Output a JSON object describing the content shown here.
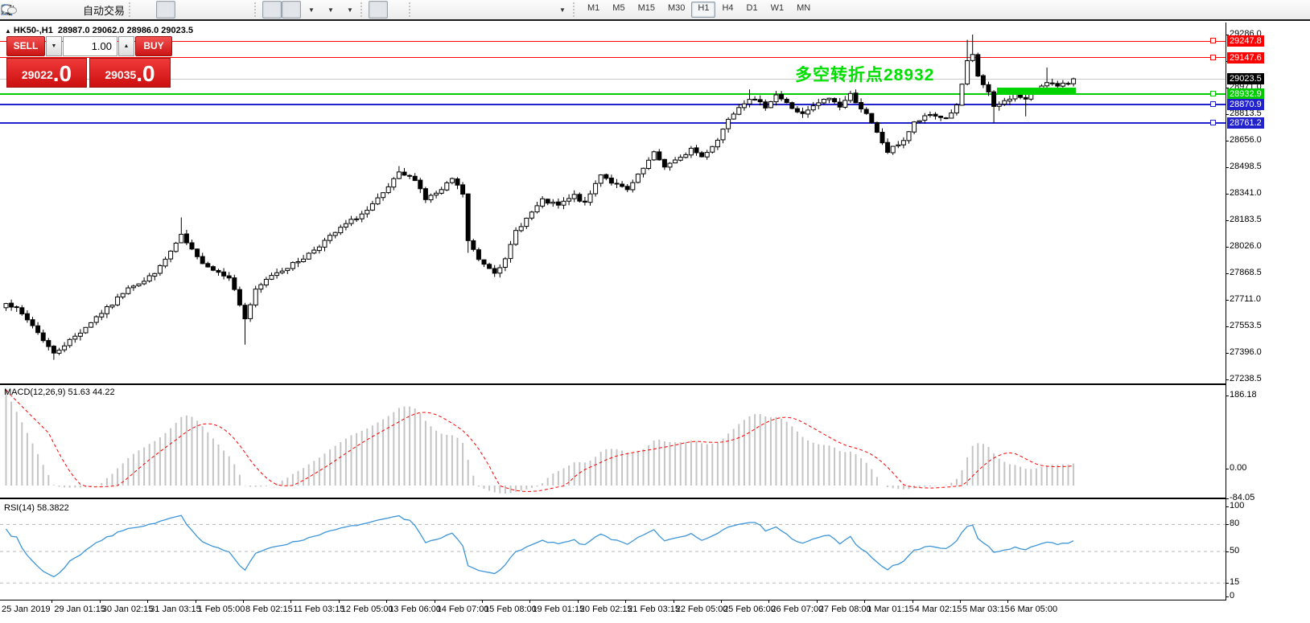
{
  "toolbar": {
    "new_order_label": "单",
    "autotrading_label": "自动交易",
    "timeframes": [
      "M1",
      "M5",
      "M15",
      "M30",
      "H1",
      "H4",
      "D1",
      "W1",
      "MN"
    ],
    "active_timeframe": "H1"
  },
  "chart": {
    "title": "HK50-,H1",
    "ohlc": "28987.0 29062.0 28986.0 29023.5"
  },
  "trade_panel": {
    "sell_label": "SELL",
    "buy_label": "BUY",
    "lot_value": "1.00",
    "sell_price": "29022",
    "sell_price_big": ".0",
    "buy_price": "29035",
    "buy_price_big": ".0"
  },
  "annotation": {
    "text": "多空转折点28932",
    "color": "#00E000"
  },
  "price_axis": {
    "ticks": [
      "29286.0",
      "29128.5",
      "28971.0",
      "28813.5",
      "28656.0",
      "28498.5",
      "28341.0",
      "28183.5",
      "28026.0",
      "27868.5",
      "27711.0",
      "27553.5",
      "27396.0",
      "27238.5"
    ],
    "badges": [
      {
        "text": "29247.8",
        "bg": "#FF0000"
      },
      {
        "text": "29147.6",
        "bg": "#FF0000"
      },
      {
        "text": "29023.5",
        "bg": "#000000"
      },
      {
        "text": "28932.9",
        "bg": "#00CC00"
      },
      {
        "text": "28870.9",
        "bg": "#2222CC"
      },
      {
        "text": "28761.2",
        "bg": "#2222CC"
      }
    ]
  },
  "levels": [
    {
      "price": 29247.8,
      "color": "#FF0000",
      "width": 1,
      "handle": true
    },
    {
      "price": 29147.6,
      "color": "#FF0000",
      "width": 1,
      "handle": true
    },
    {
      "price": 29023.5,
      "color": "#C8C8C8",
      "width": 1,
      "handle": false
    },
    {
      "price": 28932.9,
      "color": "#00CC00",
      "width": 2,
      "handle": true
    },
    {
      "price": 28870.9,
      "color": "#2222CC",
      "width": 2,
      "handle": true
    },
    {
      "price": 28761.2,
      "color": "#2222CC",
      "width": 2,
      "handle": true
    }
  ],
  "zone": {
    "price_top": 28971,
    "price_bottom": 28930,
    "bar_start": 187,
    "bar_end": 201.8,
    "color": "#00D400"
  },
  "macd": {
    "label": "MACD(12,26,9) 51.63 44.22",
    "axis_labels": [
      "186.18",
      "0.00",
      "-84.05"
    ]
  },
  "rsi": {
    "label": "RSI(14) 58.3822",
    "axis_labels": [
      "100",
      "80",
      "50",
      "15",
      "0"
    ],
    "dashed_levels": [
      80,
      50,
      15
    ]
  },
  "time_axis": {
    "bars_per_label": 9,
    "labels": [
      "25 Jan 2019",
      "29 Jan 01:15",
      "30 Jan 02:15",
      "31 Jan 03:15",
      "1 Feb 05:00",
      "8 Feb 02:15",
      "11 Feb 03:15",
      "12 Feb 05:00",
      "13 Feb 06:00",
      "14 Feb 07:00",
      "15 Feb 08:00",
      "19 Feb 01:15",
      "20 Feb 02:15",
      "21 Feb 03:15",
      "22 Feb 05:00",
      "25 Feb 06:00",
      "26 Feb 07:00",
      "27 Feb 08:00",
      "1 Mar 01:15",
      "4 Mar 02:15",
      "5 Mar 03:15",
      "6 Mar 05:00"
    ]
  },
  "chart_data": {
    "type": "candlestick",
    "symbol": "HK50-",
    "timeframe": "H1",
    "open": 28987.0,
    "high": 29062.0,
    "low": 28986.0,
    "close": 29023.5,
    "bars": 202,
    "ylim": [
      27238.5,
      29286.0
    ],
    "price_waypoints": [
      [
        0,
        27700
      ],
      [
        2,
        27655
      ],
      [
        5,
        27560
      ],
      [
        9,
        27390
      ],
      [
        11,
        27445
      ],
      [
        14,
        27520
      ],
      [
        17,
        27610
      ],
      [
        20,
        27685
      ],
      [
        23,
        27790
      ],
      [
        26,
        27820
      ],
      [
        29,
        27905
      ],
      [
        33,
        28090
      ],
      [
        36,
        27960
      ],
      [
        39,
        27890
      ],
      [
        42,
        27850
      ],
      [
        45,
        27600
      ],
      [
        47,
        27765
      ],
      [
        50,
        27860
      ],
      [
        53,
        27905
      ],
      [
        56,
        27960
      ],
      [
        60,
        28060
      ],
      [
        64,
        28160
      ],
      [
        68,
        28240
      ],
      [
        71,
        28340
      ],
      [
        74,
        28460
      ],
      [
        77,
        28430
      ],
      [
        79,
        28310
      ],
      [
        82,
        28360
      ],
      [
        84,
        28430
      ],
      [
        86,
        28340
      ],
      [
        87,
        28060
      ],
      [
        89,
        27950
      ],
      [
        92,
        27880
      ],
      [
        94,
        27945
      ],
      [
        96,
        28120
      ],
      [
        99,
        28230
      ],
      [
        101,
        28300
      ],
      [
        104,
        28270
      ],
      [
        107,
        28330
      ],
      [
        109,
        28280
      ],
      [
        112,
        28460
      ],
      [
        114,
        28410
      ],
      [
        117,
        28360
      ],
      [
        120,
        28490
      ],
      [
        122,
        28580
      ],
      [
        124,
        28505
      ],
      [
        127,
        28550
      ],
      [
        129,
        28610
      ],
      [
        131,
        28560
      ],
      [
        134,
        28660
      ],
      [
        136,
        28790
      ],
      [
        138,
        28860
      ],
      [
        140,
        28910
      ],
      [
        143,
        28860
      ],
      [
        145,
        28930
      ],
      [
        148,
        28850
      ],
      [
        150,
        28810
      ],
      [
        153,
        28880
      ],
      [
        155,
        28910
      ],
      [
        157,
        28860
      ],
      [
        159,
        28930
      ],
      [
        162,
        28810
      ],
      [
        164,
        28700
      ],
      [
        166,
        28590
      ],
      [
        169,
        28660
      ],
      [
        171,
        28760
      ],
      [
        174,
        28810
      ],
      [
        177,
        28790
      ],
      [
        179,
        28860
      ],
      [
        181,
        29120
      ],
      [
        182,
        29160
      ],
      [
        183,
        29040
      ],
      [
        185,
        28940
      ],
      [
        186,
        28850
      ],
      [
        188,
        28890
      ],
      [
        190,
        28930
      ],
      [
        192,
        28900
      ],
      [
        194,
        28960
      ],
      [
        196,
        29010
      ],
      [
        198,
        28975
      ],
      [
        200,
        29000
      ],
      [
        201,
        29023.5
      ]
    ],
    "wick_overrides": [
      [
        9,
        "l",
        27355
      ],
      [
        33,
        "h",
        28200
      ],
      [
        45,
        "l",
        27445
      ],
      [
        74,
        "h",
        28505
      ],
      [
        87,
        "l",
        27990
      ],
      [
        140,
        "h",
        28960
      ],
      [
        181,
        "h",
        29255
      ],
      [
        182,
        "h",
        29286
      ],
      [
        186,
        "l",
        28761
      ],
      [
        192,
        "l",
        28800
      ],
      [
        196,
        "h",
        29090
      ]
    ],
    "indicators": [
      {
        "name": "MACD",
        "params": [
          12,
          26,
          9
        ],
        "values": [
          51.63,
          44.22
        ],
        "range": [
          -84.05,
          186.18
        ]
      },
      {
        "name": "RSI",
        "params": [
          14
        ],
        "values": [
          58.3822
        ],
        "range": [
          0,
          100
        ]
      }
    ]
  }
}
